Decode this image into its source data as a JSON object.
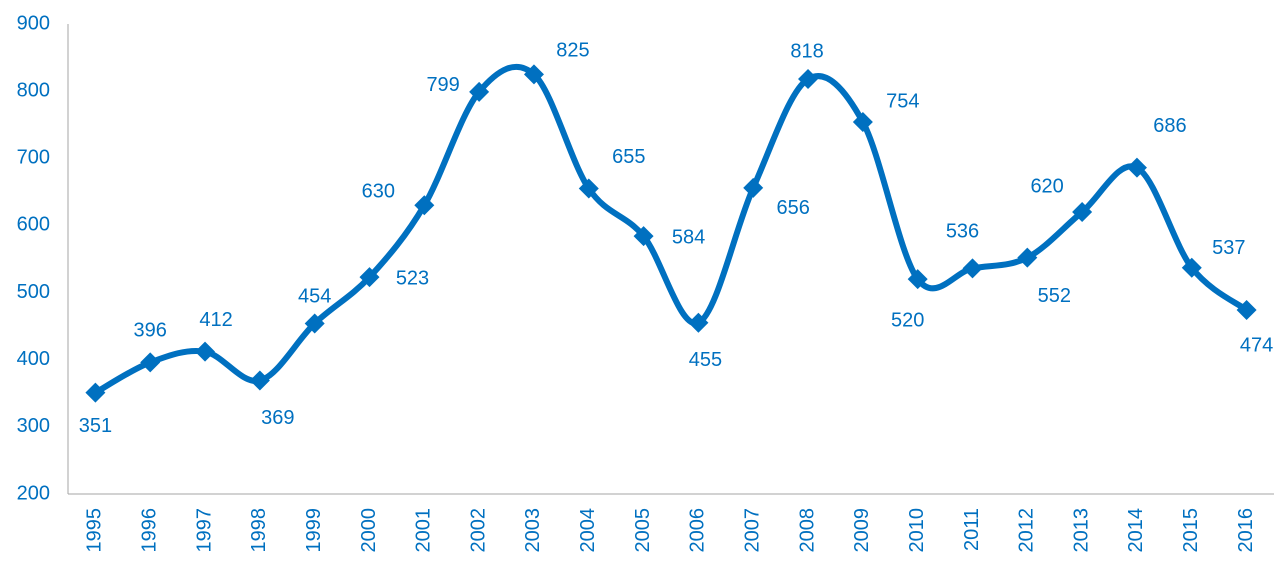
{
  "chart_data": {
    "type": "line",
    "categories": [
      "1995",
      "1996",
      "1997",
      "1998",
      "1999",
      "2000",
      "2001",
      "2002",
      "2003",
      "2004",
      "2005",
      "2006",
      "2007",
      "2008",
      "2009",
      "2010",
      "2011",
      "2012",
      "2013",
      "2014",
      "2015",
      "2016"
    ],
    "series": [
      {
        "color": "#0070c0",
        "values": [
          351,
          396,
          412,
          369,
          454,
          523,
          630,
          799,
          825,
          655,
          584,
          455,
          656,
          818,
          754,
          520,
          536,
          552,
          620,
          686,
          537,
          474
        ]
      }
    ],
    "ylim": [
      200,
      900
    ],
    "yticks": [
      200,
      300,
      400,
      500,
      600,
      700,
      800,
      900
    ],
    "grid": false,
    "smooth": true
  }
}
